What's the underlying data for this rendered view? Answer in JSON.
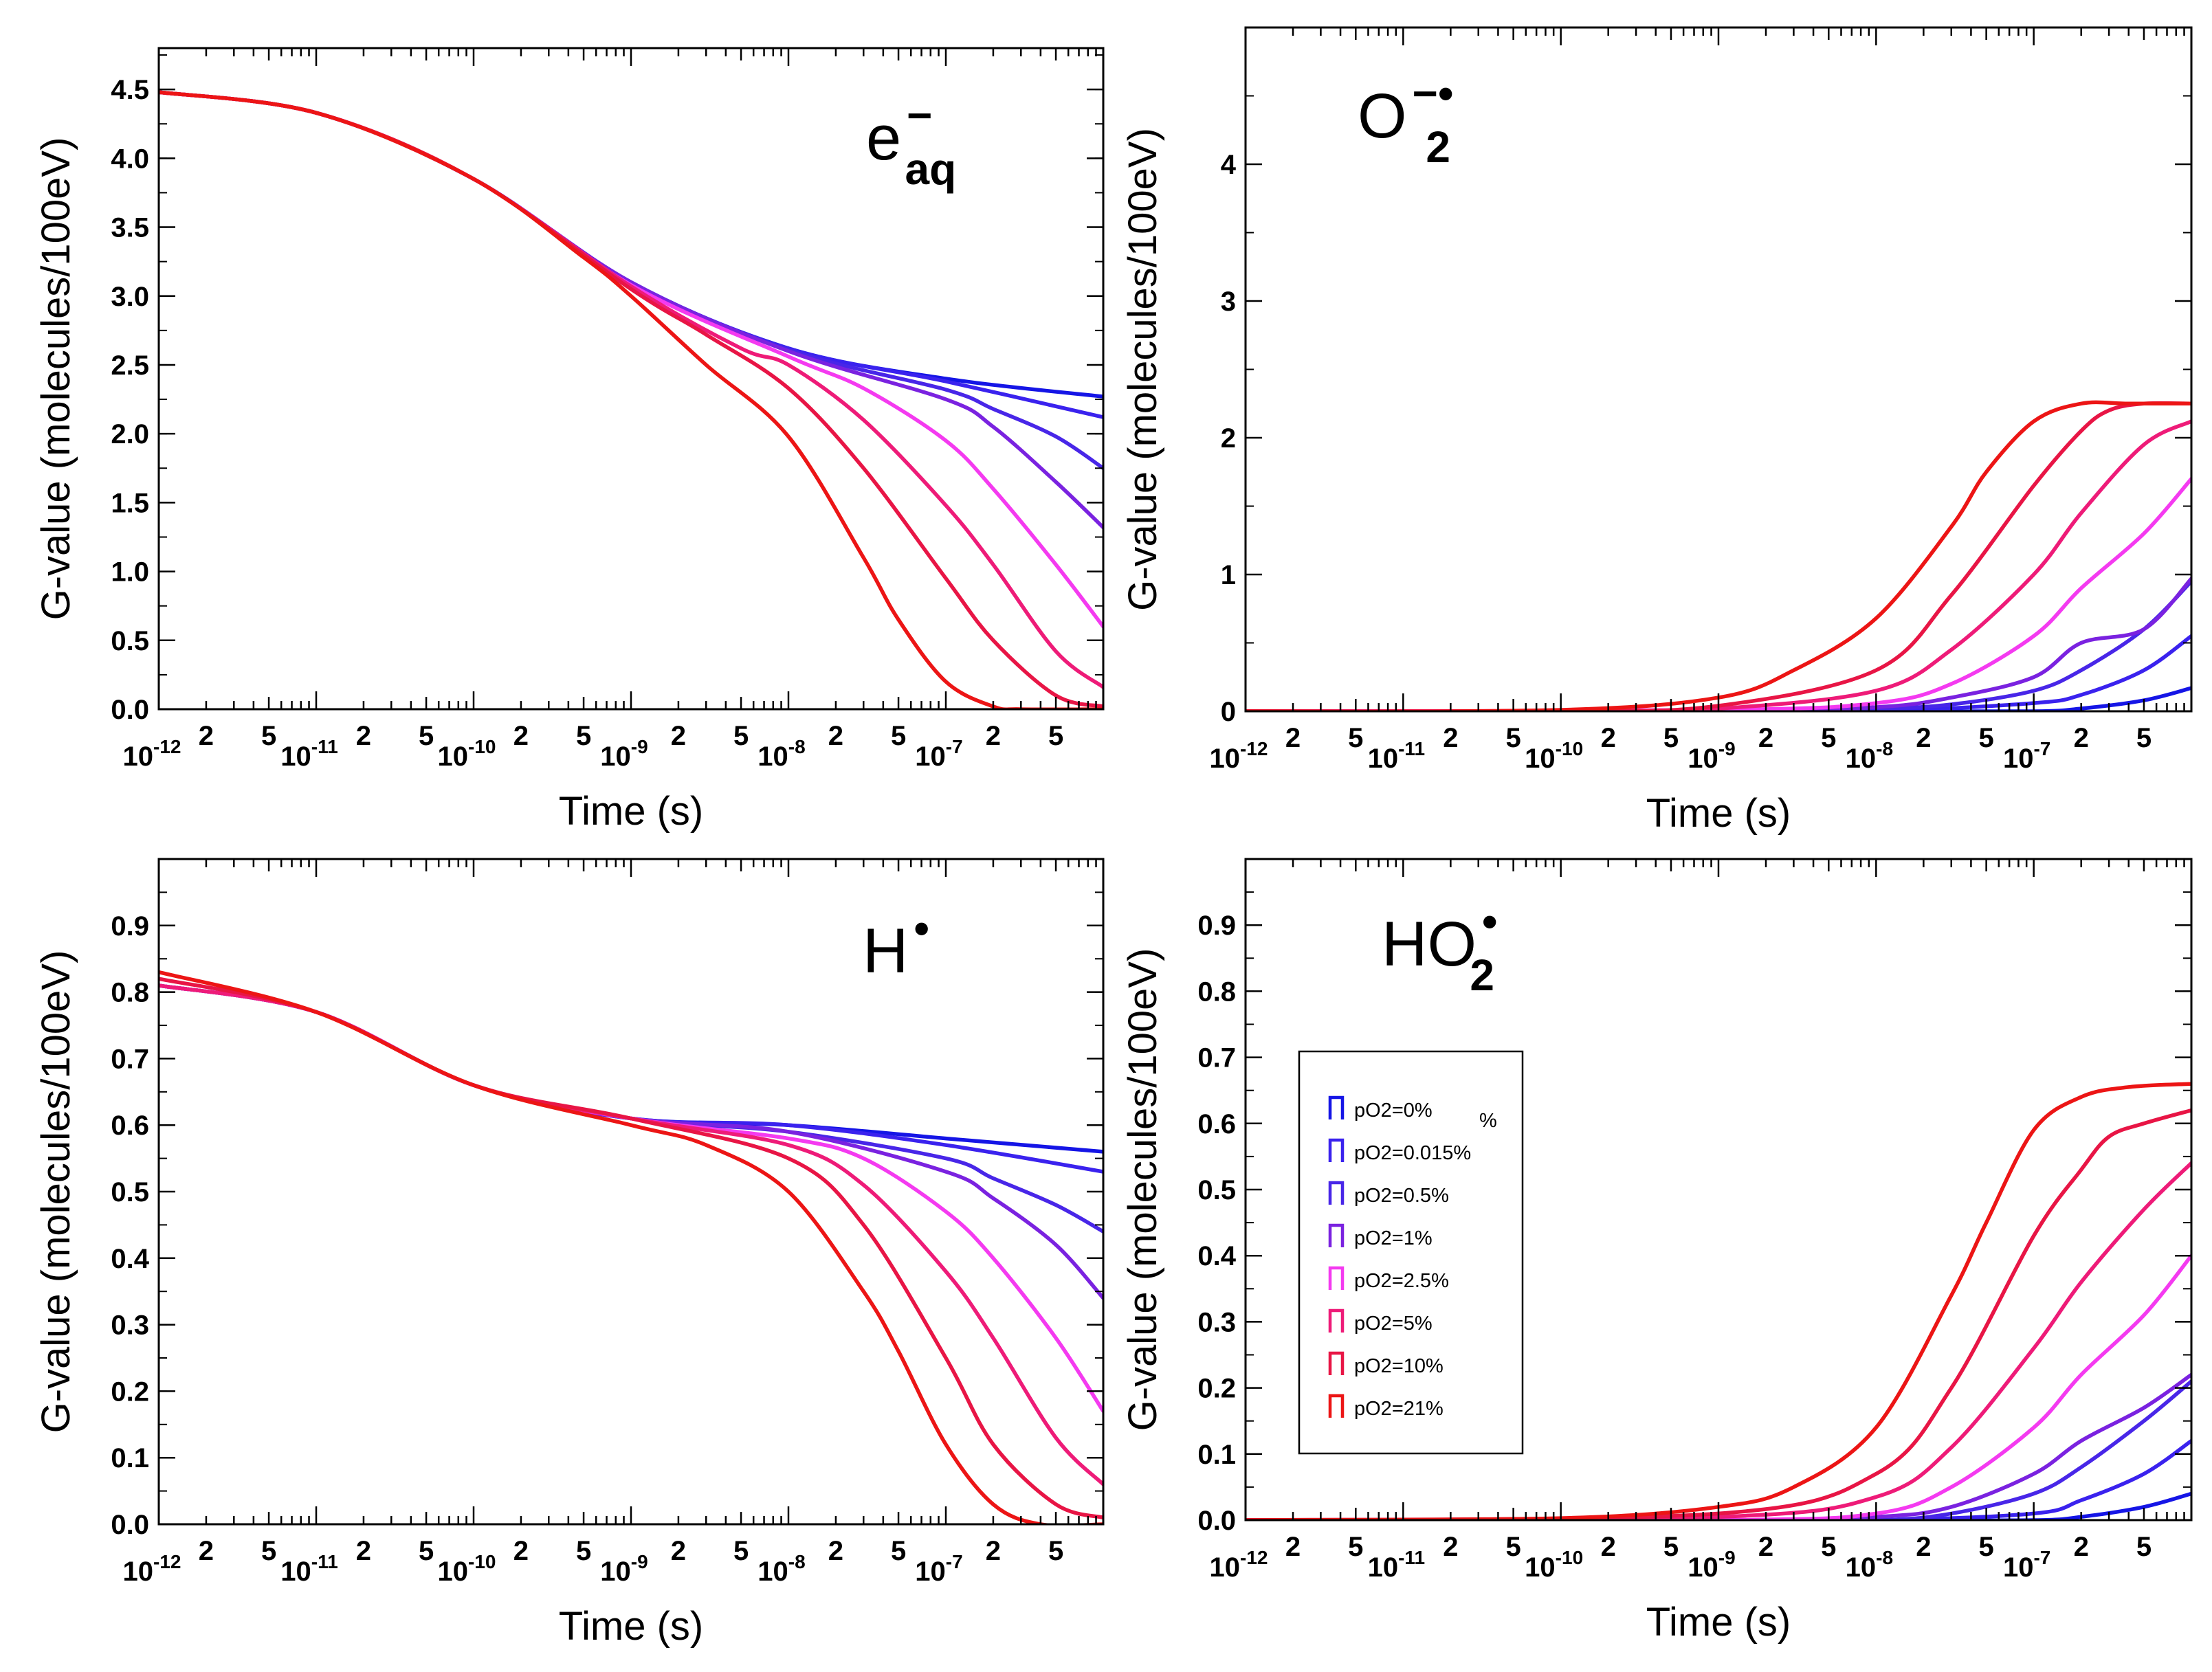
{
  "figure": {
    "colors": [
      "#1515e6",
      "#3a22ee",
      "#4826e8",
      "#7a22e0",
      "#f43af0",
      "#ee1b78",
      "#e81545",
      "#ec1515"
    ],
    "x_tick_major": [
      "10",
      "10",
      "10",
      "10",
      "10",
      "10"
    ],
    "x_tick_exp": [
      "-12",
      "-11",
      "-10",
      "-9",
      "-8",
      "-7"
    ],
    "x_tick_minor": [
      "2",
      "5"
    ]
  },
  "legend": {
    "items": [
      "pO2=0%",
      "pO2=0.015%",
      "pO2=0.5%",
      "pO2=1%",
      "pO2=2.5%",
      "pO2=5%",
      "pO2=10%",
      "pO2=21%"
    ],
    "stray_mark": "%"
  },
  "chart_data": [
    {
      "type": "line",
      "title": "e aq",
      "species_main": "e",
      "species_sup": "−",
      "species_sub": "aq",
      "xlabel": "Time (s)",
      "ylabel": "G-value (molecules/100eV)",
      "xscale": "log",
      "xlim": [
        1e-12,
        1e-06
      ],
      "ylim": [
        0,
        4.8
      ],
      "yticks": [
        "0.0",
        "0.5",
        "1.0",
        "1.5",
        "2.0",
        "2.5",
        "3.0",
        "3.5",
        "4.0",
        "4.5"
      ],
      "series": [
        {
          "name": "pO2=0%",
          "x": [
            1e-12,
            1e-11,
            1e-10,
            1e-09,
            1e-08,
            1e-07,
            1e-06
          ],
          "y": [
            4.48,
            4.33,
            3.85,
            3.1,
            2.62,
            2.4,
            2.27
          ]
        },
        {
          "name": "pO2=0.015%",
          "x": [
            1e-12,
            1e-11,
            1e-10,
            1e-09,
            1e-08,
            1e-07,
            1e-06
          ],
          "y": [
            4.48,
            4.33,
            3.85,
            3.1,
            2.62,
            2.38,
            2.12
          ]
        },
        {
          "name": "pO2=0.5%",
          "x": [
            1e-12,
            1e-11,
            1e-10,
            1e-09,
            1e-08,
            1e-07,
            2e-07,
            5e-07,
            1e-06
          ],
          "y": [
            4.48,
            4.33,
            3.85,
            3.1,
            2.61,
            2.32,
            2.18,
            1.98,
            1.75
          ]
        },
        {
          "name": "pO2=1%",
          "x": [
            1e-12,
            1e-11,
            1e-10,
            1e-09,
            1e-08,
            1e-07,
            2e-07,
            5e-07,
            1e-06
          ],
          "y": [
            4.48,
            4.33,
            3.85,
            3.1,
            2.6,
            2.25,
            2.05,
            1.65,
            1.32
          ]
        },
        {
          "name": "pO2=2.5%",
          "x": [
            1e-12,
            1e-11,
            1e-10,
            1e-09,
            1e-08,
            3e-08,
            1e-07,
            2e-07,
            5e-07,
            1e-06
          ],
          "y": [
            4.48,
            4.33,
            3.85,
            3.08,
            2.56,
            2.33,
            1.95,
            1.6,
            1.05,
            0.6
          ]
        },
        {
          "name": "pO2=5%",
          "x": [
            1e-12,
            1e-11,
            1e-10,
            1e-09,
            5e-09,
            1e-08,
            3e-08,
            1e-07,
            2e-07,
            5e-07,
            1e-06
          ],
          "y": [
            4.48,
            4.33,
            3.85,
            3.07,
            2.62,
            2.5,
            2.1,
            1.48,
            1.05,
            0.42,
            0.16
          ]
        },
        {
          "name": "pO2=10%",
          "x": [
            1e-12,
            1e-11,
            1e-10,
            1e-09,
            3e-09,
            1e-08,
            3e-08,
            1e-07,
            2e-07,
            5e-07,
            1e-06
          ],
          "y": [
            4.48,
            4.33,
            3.85,
            3.05,
            2.72,
            2.33,
            1.75,
            0.95,
            0.5,
            0.1,
            0.02
          ]
        },
        {
          "name": "pO2=21%",
          "x": [
            1e-12,
            1e-11,
            1e-10,
            5e-10,
            1e-09,
            3e-09,
            1e-08,
            3e-08,
            5e-08,
            1e-07,
            2e-07,
            3e-07,
            1e-06
          ],
          "y": [
            4.48,
            4.33,
            3.85,
            3.28,
            3.0,
            2.5,
            1.98,
            1.1,
            0.65,
            0.2,
            0.02,
            0.0,
            0.0
          ]
        }
      ]
    },
    {
      "type": "line",
      "title": "O2 −•",
      "species_main": "O",
      "species_sup": "−•",
      "species_sub": "2",
      "xlabel": "Time (s)",
      "ylabel": "G-value (molecules/100eV)",
      "xscale": "log",
      "xlim": [
        1e-12,
        1e-06
      ],
      "ylim": [
        0,
        5
      ],
      "yticks": [
        "0",
        "1",
        "2",
        "3",
        "4"
      ],
      "series": [
        {
          "name": "pO2=0%",
          "x": [
            1e-12,
            1e-09,
            1e-08,
            1e-07,
            2e-07,
            5e-07,
            1e-06
          ],
          "y": [
            0,
            0,
            0,
            0,
            0.02,
            0.08,
            0.17
          ]
        },
        {
          "name": "pO2=0.015%",
          "x": [
            1e-12,
            1e-09,
            1e-08,
            1e-07,
            2e-07,
            5e-07,
            1e-06
          ],
          "y": [
            0,
            0,
            0,
            0.06,
            0.12,
            0.3,
            0.55
          ]
        },
        {
          "name": "pO2=0.5%",
          "x": [
            1e-12,
            1e-09,
            1e-08,
            3e-08,
            1e-07,
            2e-07,
            5e-07,
            1e-06
          ],
          "y": [
            0,
            0,
            0.02,
            0.05,
            0.15,
            0.3,
            0.6,
            0.95
          ]
        },
        {
          "name": "pO2=1%",
          "x": [
            1e-12,
            1e-09,
            1e-08,
            3e-08,
            1e-07,
            2e-07,
            5e-07,
            1e-06
          ],
          "y": [
            0,
            0,
            0.03,
            0.1,
            0.25,
            0.5,
            0.6,
            0.97
          ]
        },
        {
          "name": "pO2=2.5%",
          "x": [
            1e-12,
            1e-09,
            1e-08,
            3e-08,
            1e-07,
            2e-07,
            5e-07,
            1e-06
          ],
          "y": [
            0,
            0.01,
            0.06,
            0.2,
            0.55,
            0.9,
            1.3,
            1.7
          ]
        },
        {
          "name": "pO2=5%",
          "x": [
            1e-12,
            1e-10,
            1e-09,
            1e-08,
            3e-08,
            1e-07,
            2e-07,
            5e-07,
            1e-06
          ],
          "y": [
            0,
            0,
            0.02,
            0.15,
            0.45,
            1.0,
            1.45,
            1.95,
            2.12
          ]
        },
        {
          "name": "pO2=10%",
          "x": [
            1e-12,
            1e-10,
            1e-09,
            1e-08,
            3e-08,
            1e-07,
            2e-07,
            3e-07,
            5e-07,
            1e-06
          ],
          "y": [
            0,
            0,
            0.04,
            0.3,
            0.85,
            1.65,
            2.05,
            2.2,
            2.25,
            2.25
          ]
        },
        {
          "name": "pO2=21%",
          "x": [
            1e-12,
            1e-10,
            1e-09,
            3e-09,
            1e-08,
            3e-08,
            5e-08,
            1e-07,
            2e-07,
            4e-07,
            1e-06
          ],
          "y": [
            0,
            0.01,
            0.1,
            0.3,
            0.68,
            1.35,
            1.75,
            2.12,
            2.25,
            2.25,
            2.25
          ]
        }
      ]
    },
    {
      "type": "line",
      "title": "H •",
      "species_main": "H",
      "species_sup": "•",
      "species_sub": "",
      "xlabel": "Time (s)",
      "ylabel": "G-value (molecules/100eV)",
      "xscale": "log",
      "xlim": [
        1e-12,
        1e-06
      ],
      "ylim": [
        0,
        1.0
      ],
      "yticks": [
        "0.0",
        "0.1",
        "0.2",
        "0.3",
        "0.4",
        "0.5",
        "0.6",
        "0.7",
        "0.8",
        "0.9"
      ],
      "series": [
        {
          "name": "pO2=0%",
          "x": [
            1e-12,
            1e-11,
            1e-10,
            1e-09,
            1e-08,
            1e-07,
            1e-06
          ],
          "y": [
            0.81,
            0.77,
            0.66,
            0.61,
            0.6,
            0.58,
            0.56
          ]
        },
        {
          "name": "pO2=0.015%",
          "x": [
            1e-12,
            1e-11,
            1e-10,
            1e-09,
            1e-08,
            1e-07,
            1e-06
          ],
          "y": [
            0.81,
            0.77,
            0.66,
            0.61,
            0.6,
            0.57,
            0.53
          ]
        },
        {
          "name": "pO2=0.5%",
          "x": [
            1e-12,
            1e-11,
            1e-10,
            1e-09,
            1e-08,
            1e-07,
            2e-07,
            5e-07,
            1e-06
          ],
          "y": [
            0.81,
            0.77,
            0.66,
            0.61,
            0.59,
            0.55,
            0.52,
            0.48,
            0.44
          ]
        },
        {
          "name": "pO2=1%",
          "x": [
            1e-12,
            1e-11,
            1e-10,
            1e-09,
            1e-08,
            1e-07,
            2e-07,
            5e-07,
            1e-06
          ],
          "y": [
            0.81,
            0.77,
            0.66,
            0.61,
            0.59,
            0.53,
            0.49,
            0.42,
            0.34
          ]
        },
        {
          "name": "pO2=2.5%",
          "x": [
            1e-12,
            1e-11,
            1e-10,
            1e-09,
            1e-08,
            3e-08,
            1e-07,
            2e-07,
            5e-07,
            1e-06
          ],
          "y": [
            0.81,
            0.77,
            0.66,
            0.61,
            0.58,
            0.55,
            0.47,
            0.4,
            0.28,
            0.17
          ]
        },
        {
          "name": "pO2=5%",
          "x": [
            1e-12,
            1e-11,
            1e-10,
            1e-09,
            1e-08,
            3e-08,
            1e-07,
            2e-07,
            5e-07,
            1e-06
          ],
          "y": [
            0.81,
            0.77,
            0.66,
            0.61,
            0.57,
            0.51,
            0.38,
            0.28,
            0.13,
            0.06
          ]
        },
        {
          "name": "pO2=10%",
          "x": [
            1e-12,
            1e-11,
            1e-10,
            1e-09,
            1e-08,
            3e-08,
            1e-07,
            2e-07,
            5e-07,
            1e-06
          ],
          "y": [
            0.82,
            0.77,
            0.66,
            0.61,
            0.55,
            0.45,
            0.25,
            0.12,
            0.03,
            0.01
          ]
        },
        {
          "name": "pO2=21%",
          "x": [
            1e-12,
            1e-11,
            1e-10,
            1e-09,
            3e-09,
            1e-08,
            3e-08,
            5e-08,
            1e-07,
            2e-07,
            4e-07,
            1e-06
          ],
          "y": [
            0.83,
            0.77,
            0.66,
            0.6,
            0.57,
            0.5,
            0.35,
            0.26,
            0.12,
            0.03,
            0.0,
            0.0
          ]
        }
      ]
    },
    {
      "type": "line",
      "title": "HO2 •",
      "species_main": "HO",
      "species_sup": "•",
      "species_sub": "2",
      "xlabel": "Time (s)",
      "ylabel": "G-value (molecules/100eV)",
      "xscale": "log",
      "xlim": [
        1e-12,
        1e-06
      ],
      "ylim": [
        0,
        1.0
      ],
      "yticks": [
        "0.0",
        "0.1",
        "0.2",
        "0.3",
        "0.4",
        "0.5",
        "0.6",
        "0.7",
        "0.8",
        "0.9"
      ],
      "legend": "center-left",
      "series": [
        {
          "name": "pO2=0%",
          "x": [
            1e-12,
            1e-09,
            1e-08,
            1e-07,
            2e-07,
            5e-07,
            1e-06
          ],
          "y": [
            0,
            0,
            0,
            0,
            0.005,
            0.02,
            0.04
          ]
        },
        {
          "name": "pO2=0.015%",
          "x": [
            1e-12,
            1e-09,
            1e-08,
            1e-07,
            2e-07,
            5e-07,
            1e-06
          ],
          "y": [
            0,
            0,
            0,
            0.01,
            0.03,
            0.07,
            0.12
          ]
        },
        {
          "name": "pO2=0.5%",
          "x": [
            1e-12,
            1e-09,
            1e-08,
            3e-08,
            1e-07,
            2e-07,
            5e-07,
            1e-06
          ],
          "y": [
            0,
            0,
            0,
            0.01,
            0.04,
            0.08,
            0.15,
            0.21
          ]
        },
        {
          "name": "pO2=1%",
          "x": [
            1e-12,
            1e-09,
            1e-08,
            3e-08,
            1e-07,
            2e-07,
            5e-07,
            1e-06
          ],
          "y": [
            0,
            0,
            0.005,
            0.02,
            0.07,
            0.12,
            0.17,
            0.22
          ]
        },
        {
          "name": "pO2=2.5%",
          "x": [
            1e-12,
            1e-09,
            1e-08,
            3e-08,
            1e-07,
            2e-07,
            5e-07,
            1e-06
          ],
          "y": [
            0,
            0,
            0.01,
            0.05,
            0.14,
            0.22,
            0.31,
            0.4
          ]
        },
        {
          "name": "pO2=5%",
          "x": [
            1e-12,
            1e-09,
            1e-08,
            3e-08,
            1e-07,
            2e-07,
            5e-07,
            1e-06
          ],
          "y": [
            0,
            0.005,
            0.035,
            0.11,
            0.26,
            0.36,
            0.47,
            0.54
          ]
        },
        {
          "name": "pO2=10%",
          "x": [
            1e-12,
            1e-09,
            1e-08,
            3e-08,
            1e-07,
            2e-07,
            3e-07,
            5e-07,
            1e-06
          ],
          "y": [
            0,
            0.01,
            0.07,
            0.2,
            0.43,
            0.53,
            0.58,
            0.6,
            0.62
          ]
        },
        {
          "name": "pO2=21%",
          "x": [
            1e-12,
            1e-10,
            1e-09,
            3e-09,
            1e-08,
            3e-08,
            5e-08,
            1e-07,
            2e-07,
            4e-07,
            1e-06
          ],
          "y": [
            0,
            0.003,
            0.02,
            0.05,
            0.14,
            0.34,
            0.45,
            0.59,
            0.64,
            0.655,
            0.66
          ]
        }
      ]
    }
  ]
}
